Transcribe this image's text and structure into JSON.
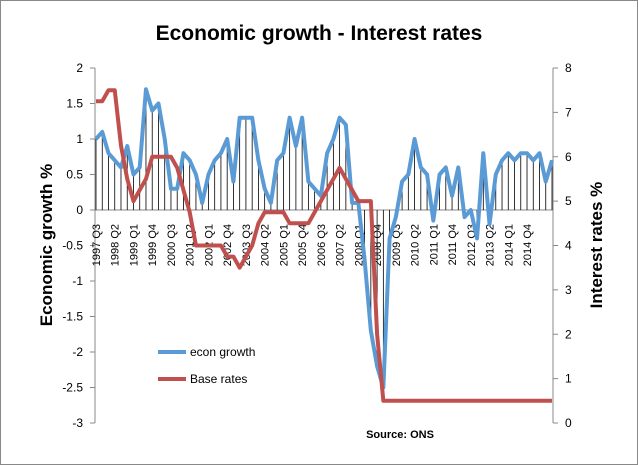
{
  "chart_data": {
    "type": "line",
    "title": "Economic growth - Interest rates",
    "y_label": "Economic growth %",
    "y2_label": "Interest rates %",
    "source": "Source: ONS",
    "categories": [
      "1997 Q3",
      null,
      null,
      "1998 Q2",
      null,
      null,
      "1999 Q1",
      null,
      null,
      "1999 Q4",
      null,
      null,
      "2000 Q3",
      null,
      null,
      "2001 Q2",
      null,
      null,
      "2002 Q1",
      null,
      null,
      "2002 Q4",
      null,
      null,
      "2003 Q3",
      null,
      null,
      "2004 Q2",
      null,
      null,
      "2005 Q1",
      null,
      null,
      "2005 Q4",
      null,
      null,
      "2006 Q3",
      null,
      null,
      "2007 Q2",
      null,
      null,
      "2008 Q1",
      null,
      null,
      "2008 Q4",
      null,
      null,
      "2009 Q3",
      null,
      null,
      "2010 Q2",
      null,
      null,
      "2011 Q1",
      null,
      null,
      "2011 Q4",
      null,
      null,
      "2012 Q3",
      null,
      null,
      "2013 Q2",
      null,
      null,
      "2014 Q1",
      null,
      null,
      "2014 Q4",
      null,
      null,
      null,
      null
    ],
    "series": [
      {
        "name": "econ growth",
        "color": "#5b9bd5",
        "axis": "y",
        "drop_lines": true,
        "values": [
          1.0,
          1.1,
          0.8,
          0.7,
          0.6,
          0.9,
          0.5,
          0.6,
          1.7,
          1.4,
          1.5,
          1.0,
          0.3,
          0.3,
          0.8,
          0.7,
          0.5,
          0.1,
          0.5,
          0.7,
          0.8,
          1.0,
          0.4,
          1.3,
          1.3,
          1.3,
          0.7,
          0.3,
          0.1,
          0.7,
          0.8,
          1.3,
          0.9,
          1.3,
          0.4,
          0.3,
          0.2,
          0.8,
          1.0,
          1.3,
          1.2,
          0.1,
          0.1,
          -0.7,
          -1.7,
          -2.2,
          -2.5,
          -0.4,
          -0.1,
          0.4,
          0.5,
          1.0,
          0.6,
          0.5,
          -0.15,
          0.5,
          0.6,
          0.2,
          0.6,
          -0.1,
          0.0,
          -0.4,
          0.8,
          -0.2,
          0.5,
          0.7,
          0.8,
          0.7,
          0.8,
          0.8,
          0.7,
          0.8,
          0.4,
          0.7
        ]
      },
      {
        "name": "Base rates",
        "color": "#c0504d",
        "axis": "y2",
        "values": [
          7.25,
          7.25,
          7.5,
          7.5,
          6.25,
          5.5,
          5.0,
          5.25,
          5.5,
          6.0,
          6.0,
          6.0,
          6.0,
          5.75,
          5.25,
          4.75,
          4.0,
          4.0,
          4.0,
          4.0,
          4.0,
          3.75,
          3.75,
          3.5,
          3.75,
          4.0,
          4.5,
          4.75,
          4.75,
          4.75,
          4.75,
          4.5,
          4.5,
          4.5,
          4.5,
          4.75,
          5.0,
          5.25,
          5.5,
          5.75,
          5.5,
          5.25,
          5.0,
          5.0,
          5.0,
          2.0,
          0.5,
          0.5,
          0.5,
          0.5,
          0.5,
          0.5,
          0.5,
          0.5,
          0.5,
          0.5,
          0.5,
          0.5,
          0.5,
          0.5,
          0.5,
          0.5,
          0.5,
          0.5,
          0.5,
          0.5,
          0.5,
          0.5,
          0.5,
          0.5,
          0.5,
          0.5,
          0.5,
          0.5
        ]
      }
    ],
    "ylim": [
      -3,
      2
    ],
    "yticks": [
      -3,
      -2.5,
      -2,
      -1.5,
      -1,
      -0.5,
      0,
      0.5,
      1,
      1.5,
      2
    ],
    "y2lim": [
      0,
      8
    ],
    "y2ticks": [
      0,
      1,
      2,
      3,
      4,
      5,
      6,
      7,
      8
    ]
  }
}
